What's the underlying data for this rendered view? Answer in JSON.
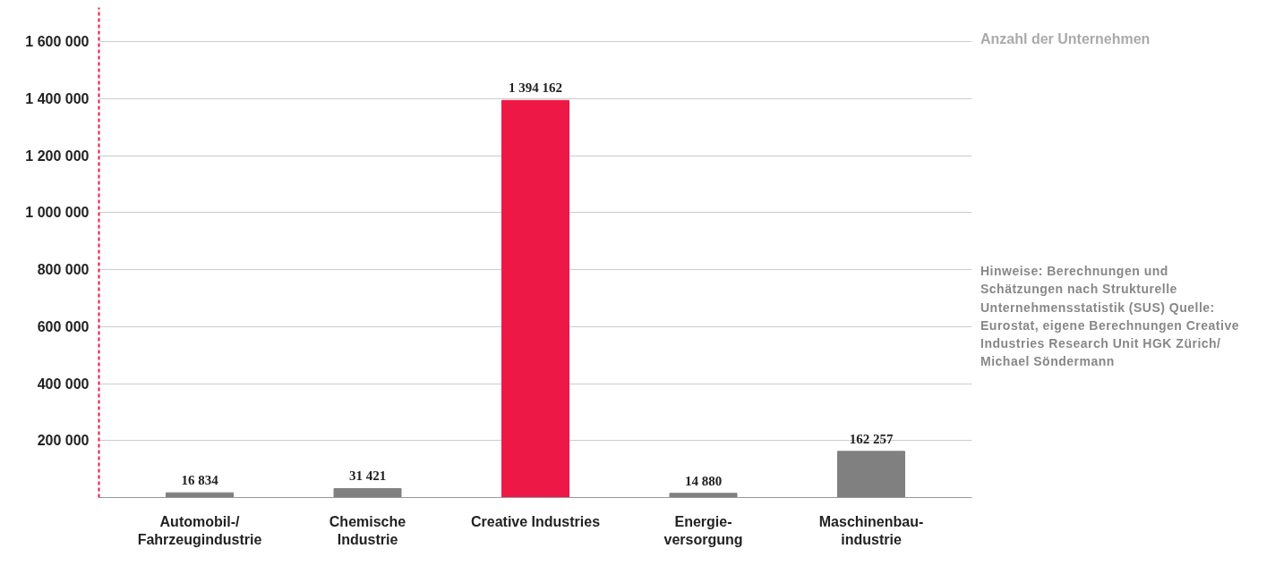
{
  "chart_data": {
    "type": "bar",
    "categories": [
      "Automobil-/\nFahrzeugindustrie",
      "Chemische\nIndustrie",
      "Creative Industries",
      "Energie-\nversorgung",
      "Maschinenbau-\nindustrie"
    ],
    "values": [
      16834,
      31421,
      1394162,
      14880,
      162257
    ],
    "colors": [
      "#808080",
      "#808080",
      "#ee1847",
      "#808080",
      "#808080"
    ],
    "value_labels": [
      "16 834",
      "31 421",
      "1 394 162",
      "14 880",
      "162 257"
    ],
    "ylim": [
      0,
      1720000
    ],
    "yticks": [
      {
        "value": 200000,
        "label": "200 000"
      },
      {
        "value": 400000,
        "label": "400 000"
      },
      {
        "value": 600000,
        "label": "600 000"
      },
      {
        "value": 800000,
        "label": "800 000"
      },
      {
        "value": 1000000,
        "label": "1 000 000"
      },
      {
        "value": 1200000,
        "label": "1 200 000"
      },
      {
        "value": 1400000,
        "label": "1 400 000"
      },
      {
        "value": 1600000,
        "label": "1 600 000"
      }
    ],
    "grid": "y",
    "annotations": [
      "Anzahl der Unternehmen",
      "Hinweise: Berechnungen und Schätzungen nach Strukturelle Unternehmensstatistik (SUS) Quelle: Eurostat, eigene Berechnungen Creative Industries Research Unit HGK Zürich/ Michael Söndermann"
    ]
  }
}
